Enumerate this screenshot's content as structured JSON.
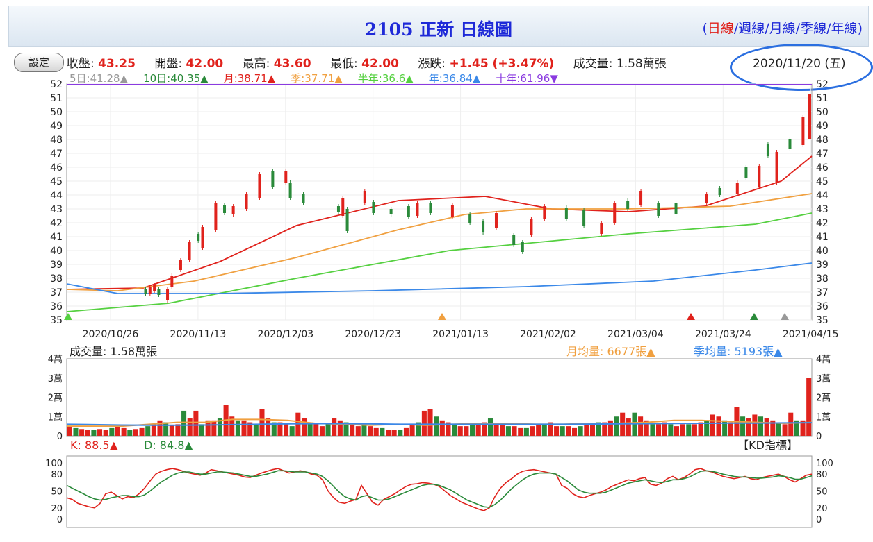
{
  "header": {
    "title": "2105 正新  日線圖"
  },
  "periods": {
    "open_paren": "(",
    "close_paren": ")",
    "sep": "/",
    "items": [
      "日線",
      "週線",
      "月線",
      "季線",
      "年線"
    ]
  },
  "toolbar": {
    "settings_label": "設定"
  },
  "quote": {
    "close_label": "收盤:",
    "close": "43.25",
    "open_label": "開盤:",
    "open": "42.00",
    "high_label": "最高:",
    "high": "43.60",
    "low_label": "最低:",
    "low": "42.00",
    "change_label": "漲跌:",
    "change": "+1.45 (+3.47%)",
    "volume_label": "成交量:",
    "volume": "1.58萬張",
    "date": "2020/11/20 (五)"
  },
  "colors": {
    "up": "#e0221c",
    "down": "#2a8a3a",
    "accent": "#1f2ad8",
    "circle": "#2b6fe0"
  },
  "chart_data": [
    {
      "type": "candlestick",
      "y_ticks": [
        35,
        36,
        37,
        38,
        39,
        40,
        41,
        42,
        43,
        44,
        45,
        46,
        47,
        48,
        49,
        50,
        51,
        52
      ],
      "ylim": [
        35,
        52
      ],
      "x_tick_labels": [
        "2020/10/26",
        "2020/11/13",
        "2020/12/03",
        "2020/12/23",
        "2021/01/13",
        "2021/02/02",
        "2021/03/04",
        "2021/03/24",
        "2021/04/15"
      ],
      "legend": [
        {
          "label": "5日:41.28",
          "color": "#999999",
          "arrow": "▲"
        },
        {
          "label": "10日:40.35",
          "color": "#2a8a3a",
          "arrow": "▲"
        },
        {
          "label": "月:38.71",
          "color": "#e0221c",
          "arrow": "▲"
        },
        {
          "label": "季:37.71",
          "color": "#f0a040",
          "arrow": "▲"
        },
        {
          "label": "半年:36.6",
          "color": "#55d040",
          "arrow": "▲"
        },
        {
          "label": "年:36.84",
          "color": "#3a88e8",
          "arrow": "▲"
        },
        {
          "label": "十年:61.96",
          "color": "#8a3ae0",
          "arrow": "▼"
        }
      ],
      "series": [
        {
          "name": "月",
          "color": "#e0221c",
          "x": [
            0,
            15,
            30,
            45,
            65,
            82,
            95,
            110,
            125,
            140,
            146
          ],
          "values": [
            37.2,
            37.3,
            39.2,
            41.8,
            43.6,
            43.9,
            43.0,
            42.8,
            43.2,
            45.0,
            46.8
          ]
        },
        {
          "name": "季",
          "color": "#f0a040",
          "x": [
            0,
            10,
            25,
            45,
            65,
            78,
            90,
            110,
            130,
            146
          ],
          "values": [
            37.2,
            37.1,
            37.8,
            39.5,
            41.5,
            42.6,
            43.0,
            43.0,
            43.2,
            44.1
          ]
        },
        {
          "name": "半年",
          "color": "#55d040",
          "x": [
            0,
            20,
            45,
            75,
            110,
            135,
            146
          ],
          "values": [
            35.6,
            36.2,
            38.0,
            40.0,
            41.2,
            41.9,
            42.7
          ]
        },
        {
          "name": "年",
          "color": "#3a88e8",
          "x": [
            0,
            10,
            30,
            60,
            90,
            115,
            135,
            146
          ],
          "values": [
            37.6,
            36.9,
            36.9,
            37.1,
            37.4,
            37.8,
            38.6,
            39.1
          ]
        }
      ],
      "candles_up": [
        [
          38,
          36.9,
          37.4
        ],
        [
          40,
          37.1,
          37.5
        ],
        [
          46,
          36.4,
          37.2
        ],
        [
          48,
          37.4,
          38.2
        ],
        [
          52,
          38.6,
          39.3
        ],
        [
          56,
          39.3,
          40.6
        ],
        [
          62,
          40.2,
          41.7
        ],
        [
          68,
          41.5,
          43.4
        ],
        [
          76,
          42.6,
          43.2
        ],
        [
          82,
          43.0,
          44.1
        ],
        [
          88,
          43.8,
          45.5
        ],
        [
          100,
          44.9,
          45.7
        ],
        [
          126,
          42.5,
          43.8
        ],
        [
          136,
          43.4,
          44.3
        ],
        [
          160,
          42.5,
          43.4
        ],
        [
          176,
          42.4,
          43.3
        ],
        [
          196,
          41.6,
          42.7
        ],
        [
          212,
          41.1,
          42.3
        ],
        [
          218,
          42.3,
          43.2
        ],
        [
          244,
          41.2,
          42.0
        ],
        [
          250,
          42.0,
          43.4
        ],
        [
          262,
          43.3,
          44.3
        ],
        [
          292,
          43.4,
          44.1
        ],
        [
          306,
          44.1,
          44.9
        ],
        [
          316,
          44.6,
          46.1
        ],
        [
          324,
          44.9,
          47.1
        ],
        [
          336,
          47.6,
          49.6
        ]
      ],
      "candles_down": [
        [
          36,
          36.9,
          37.2
        ],
        [
          42,
          36.8,
          37.2
        ],
        [
          60,
          40.7,
          41.2
        ],
        [
          72,
          42.7,
          43.3
        ],
        [
          94,
          44.6,
          45.7
        ],
        [
          102,
          43.8,
          44.9
        ],
        [
          108,
          43.4,
          44.1
        ],
        [
          124,
          42.8,
          43.2
        ],
        [
          128,
          41.4,
          43.0
        ],
        [
          140,
          42.7,
          43.5
        ],
        [
          148,
          42.6,
          43.0
        ],
        [
          156,
          42.4,
          43.2
        ],
        [
          166,
          42.7,
          43.4
        ],
        [
          184,
          42.0,
          42.6
        ],
        [
          190,
          41.3,
          42.1
        ],
        [
          204,
          40.4,
          41.1
        ],
        [
          208,
          39.9,
          40.6
        ],
        [
          228,
          42.3,
          43.1
        ],
        [
          236,
          41.8,
          42.9
        ],
        [
          256,
          43.0,
          43.6
        ],
        [
          270,
          42.5,
          43.4
        ],
        [
          278,
          42.6,
          43.4
        ],
        [
          298,
          44.0,
          44.5
        ],
        [
          310,
          45.2,
          46.0
        ],
        [
          320,
          46.8,
          47.7
        ],
        [
          330,
          47.3,
          48.0
        ]
      ],
      "markers": [
        {
          "x": "2020/10/26",
          "color": "#55d040"
        },
        {
          "x": "2021/01/13",
          "color": "#f0a040"
        },
        {
          "x": "2021/03/04",
          "color": "#e0221c"
        },
        {
          "x": "2021/03/24",
          "color": "#2a8a3a"
        },
        {
          "x": "2021/04/15",
          "color": "#999999"
        }
      ]
    },
    {
      "type": "bar",
      "title": "成交量: 1.58萬張",
      "y_ticks": [
        "0",
        "1萬",
        "2萬",
        "3萬",
        "4萬"
      ],
      "ylim": [
        0,
        4
      ],
      "legend": [
        {
          "label": "月均量: 6677張",
          "color": "#f0a040",
          "arrow": "▲"
        },
        {
          "label": "季均量: 5193張",
          "color": "#3a88e8",
          "arrow": "▲"
        }
      ],
      "values": [
        0.5,
        0.4,
        0.35,
        0.3,
        0.3,
        0.35,
        0.3,
        0.4,
        0.45,
        0.4,
        0.3,
        0.35,
        0.4,
        0.5,
        0.6,
        0.8,
        0.7,
        0.55,
        0.6,
        1.3,
        0.9,
        1.3,
        0.6,
        0.8,
        0.8,
        0.9,
        1.6,
        1.0,
        0.8,
        0.8,
        0.7,
        0.6,
        1.4,
        0.9,
        0.7,
        0.7,
        0.6,
        0.5,
        1.2,
        0.9,
        0.7,
        0.6,
        0.5,
        0.6,
        0.9,
        0.8,
        0.7,
        0.6,
        0.5,
        0.6,
        0.5,
        0.4,
        0.4,
        0.3,
        0.3,
        0.3,
        0.4,
        0.6,
        0.7,
        1.3,
        1.4,
        1.0,
        0.8,
        0.7,
        0.6,
        0.5,
        0.5,
        0.6,
        0.6,
        0.7,
        0.9,
        0.6,
        0.6,
        0.5,
        0.5,
        0.4,
        0.4,
        0.5,
        0.6,
        0.6,
        0.7,
        0.5,
        0.5,
        0.5,
        0.4,
        0.5,
        0.6,
        0.6,
        0.7,
        0.7,
        0.8,
        1.0,
        1.2,
        0.9,
        1.2,
        1.0,
        0.8,
        0.6,
        0.6,
        0.7,
        0.6,
        0.5,
        0.6,
        0.6,
        0.6,
        0.7,
        0.8,
        1.1,
        1.0,
        0.8,
        0.7,
        1.5,
        1.0,
        0.9,
        1.1,
        1.0,
        0.9,
        0.8,
        0.7,
        0.6,
        1.2,
        0.8,
        0.8,
        3.0
      ],
      "ma_month": [
        0.5,
        0.5,
        0.5,
        0.6,
        0.7,
        0.7,
        0.85,
        0.85,
        0.8,
        0.65,
        0.6,
        0.55,
        0.6,
        0.55,
        0.6,
        0.65,
        0.65,
        0.6,
        0.6,
        0.65,
        0.65,
        0.7,
        0.8,
        0.8,
        0.75,
        0.7,
        0.65,
        0.7
      ],
      "ma_quarter": [
        0.6,
        0.58,
        0.56,
        0.55,
        0.55,
        0.56,
        0.58,
        0.6,
        0.62,
        0.63,
        0.63,
        0.62,
        0.6,
        0.6,
        0.6,
        0.6,
        0.6,
        0.6,
        0.6,
        0.61,
        0.62,
        0.63,
        0.64,
        0.65,
        0.66,
        0.66,
        0.67,
        0.68
      ]
    },
    {
      "type": "line",
      "title": "【KD指標】",
      "legend": [
        {
          "label": "K: 88.5",
          "color": "#e0221c",
          "arrow": "▲"
        },
        {
          "label": "D: 84.8",
          "color": "#2a8a3a",
          "arrow": "▲"
        }
      ],
      "y_ticks": [
        0,
        20,
        50,
        80,
        100
      ],
      "ylim": [
        0,
        100
      ],
      "series": [
        {
          "name": "K",
          "color": "#e0221c",
          "values": [
            38,
            35,
            28,
            25,
            22,
            20,
            28,
            45,
            48,
            42,
            36,
            40,
            38,
            45,
            55,
            68,
            80,
            85,
            88,
            90,
            88,
            85,
            82,
            80,
            78,
            82,
            88,
            86,
            84,
            82,
            80,
            78,
            75,
            74,
            78,
            82,
            85,
            88,
            90,
            86,
            82,
            84,
            86,
            84,
            80,
            78,
            70,
            50,
            38,
            30,
            28,
            32,
            35,
            60,
            45,
            30,
            25,
            35,
            40,
            45,
            52,
            58,
            62,
            63,
            65,
            64,
            62,
            58,
            50,
            42,
            36,
            30,
            26,
            22,
            18,
            15,
            20,
            40,
            55,
            65,
            72,
            80,
            85,
            87,
            88,
            86,
            84,
            82,
            80,
            60,
            55,
            45,
            40,
            38,
            42,
            45,
            48,
            52,
            58,
            62,
            66,
            70,
            68,
            72,
            74,
            62,
            60,
            64,
            72,
            76,
            70,
            74,
            80,
            88,
            90,
            86,
            84,
            80,
            76,
            74,
            72,
            74,
            76,
            72,
            70,
            74,
            76,
            78,
            80,
            76,
            70,
            66,
            72,
            78,
            80
          ]
        },
        {
          "name": "D",
          "color": "#2a8a3a",
          "values": [
            60,
            55,
            50,
            45,
            40,
            36,
            34,
            35,
            38,
            40,
            42,
            42,
            40,
            40,
            43,
            50,
            58,
            66,
            72,
            78,
            82,
            84,
            84,
            82,
            80,
            80,
            82,
            84,
            84,
            83,
            82,
            80,
            78,
            76,
            76,
            78,
            80,
            83,
            86,
            86,
            85,
            84,
            84,
            84,
            82,
            80,
            76,
            68,
            58,
            48,
            40,
            36,
            34,
            40,
            42,
            38,
            34,
            34,
            36,
            40,
            44,
            48,
            52,
            56,
            60,
            62,
            62,
            60,
            56,
            52,
            46,
            40,
            34,
            30,
            26,
            22,
            21,
            26,
            34,
            44,
            54,
            62,
            70,
            76,
            80,
            82,
            82,
            82,
            80,
            74,
            68,
            60,
            52,
            48,
            46,
            46,
            46,
            48,
            52,
            56,
            60,
            64,
            66,
            68,
            70,
            68,
            66,
            65,
            67,
            70,
            70,
            72,
            75,
            80,
            85,
            86,
            85,
            83,
            80,
            78,
            76,
            75,
            75,
            74,
            73,
            73,
            74,
            75,
            77,
            76,
            74,
            71,
            71,
            74,
            77
          ]
        }
      ]
    }
  ]
}
